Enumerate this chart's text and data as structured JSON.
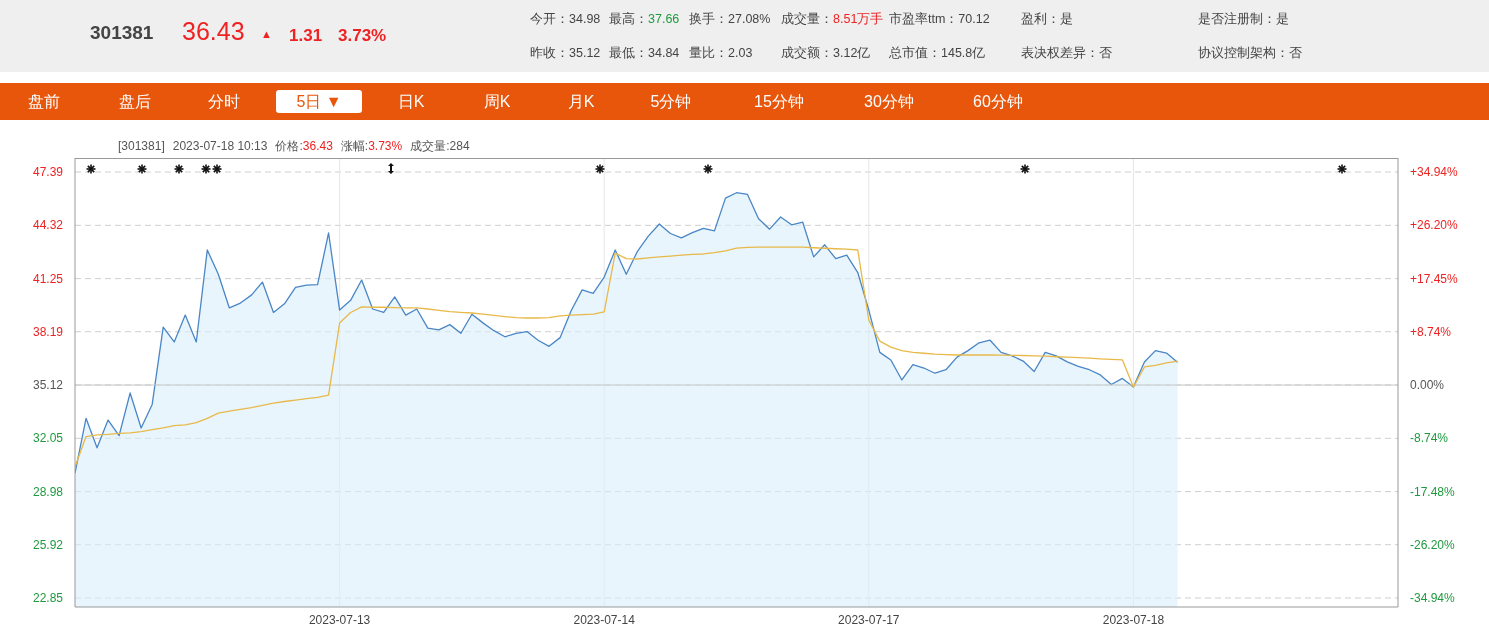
{
  "chart_data": {
    "type": "line",
    "annotations": [
      "301381",
      "36.43",
      "▲",
      "1.31",
      "3.73%",
      "今开：",
      "34.98",
      "最高：",
      "37.66",
      "换手：",
      "27.08%",
      "成交量：",
      "8.51万手",
      "市盈率ttm：",
      "70.12",
      "盈利：",
      "是",
      "是否注册制：",
      "是",
      "昨收：",
      "35.12",
      "最低：",
      "34.84",
      "量比：",
      "2.03",
      "成交额：",
      "3.12亿",
      "总市值：",
      "145.8亿",
      "表决权差异：",
      "否",
      "协议控制架构：",
      "否",
      "盘前",
      "盘后",
      "分时",
      "5日 ▼",
      "日K",
      "周K",
      "月K",
      "5分钟",
      "15分钟",
      "30分钟",
      "60分钟",
      "[301381]",
      "2023-07-18 10:13",
      "价格:",
      "36.43",
      "涨幅:",
      "3.73%",
      "成交量:284"
    ],
    "categories": [
      null,
      null,
      null,
      null,
      null,
      null,
      null,
      null,
      null,
      null,
      null,
      null,
      null,
      null,
      null,
      null,
      null,
      null,
      null,
      null,
      null,
      null,
      null,
      null,
      "2023-07-13",
      null,
      null,
      null,
      null,
      null,
      null,
      null,
      null,
      null,
      null,
      null,
      null,
      null,
      null,
      null,
      null,
      null,
      null,
      null,
      null,
      null,
      null,
      null,
      "2023-07-14",
      null,
      null,
      null,
      null,
      null,
      null,
      null,
      null,
      null,
      null,
      null,
      null,
      null,
      null,
      null,
      null,
      null,
      null,
      null,
      null,
      null,
      null,
      null,
      "2023-07-17",
      null,
      null,
      null,
      null,
      null,
      null,
      null,
      null,
      null,
      null,
      null,
      null,
      null,
      null,
      null,
      null,
      null,
      null,
      null,
      null,
      null,
      null,
      null,
      "2023-07-18",
      null,
      null,
      null,
      null,
      null,
      null,
      null,
      null,
      null,
      null,
      null,
      null,
      null,
      null,
      null,
      null,
      null,
      null,
      null,
      null,
      null,
      null,
      null,
      null
    ],
    "ylim": [
      22.33,
      48.2
    ],
    "yticks": [
      22.85,
      25.92,
      28.98,
      32.05,
      35.12,
      38.19,
      41.25,
      44.32,
      47.39
    ],
    "y2lim": [
      -36.42,
      37.24
    ],
    "y2ticks": [
      {
        "value": -34.94,
        "label": "-34.94%"
      },
      {
        "value": -26.2,
        "label": "-26.20%"
      },
      {
        "value": -17.48,
        "label": "-17.48%"
      },
      {
        "value": -8.74,
        "label": "-8.74%"
      },
      {
        "value": 0,
        "label": "0.00%"
      },
      {
        "value": 8.74,
        "label": "+8.74%"
      },
      {
        "value": 17.45,
        "label": "+17.45%"
      },
      {
        "value": 26.2,
        "label": "+26.20%"
      },
      {
        "value": 34.94,
        "label": "+34.94%"
      }
    ],
    "ref_lines": [
      {
        "axis": "y",
        "value": 35.12,
        "color": "#c8c8c8"
      }
    ],
    "grid": true,
    "marker": "none",
    "line_style": "solid",
    "series": [
      {
        "type": "area",
        "color": "#4a86c5",
        "values": [
          30.05,
          33.2,
          31.5,
          33.1,
          32.2,
          34.66,
          32.64,
          34.0,
          38.46,
          37.6,
          39.15,
          37.6,
          42.9,
          41.5,
          39.56,
          39.84,
          40.3,
          41.05,
          39.3,
          39.8,
          40.75,
          40.88,
          40.9,
          43.88,
          39.44,
          40.0,
          41.17,
          39.5,
          39.3,
          40.2,
          39.15,
          39.5,
          38.4,
          38.3,
          38.6,
          38.1,
          39.2,
          38.7,
          38.25,
          37.9,
          38.1,
          38.2,
          37.7,
          37.35,
          37.85,
          39.4,
          40.6,
          40.4,
          41.34,
          42.9,
          41.5,
          42.8,
          43.7,
          44.4,
          43.85,
          43.6,
          43.9,
          44.15,
          44.0,
          45.89,
          46.2,
          46.1,
          44.7,
          44.1,
          44.8,
          44.35,
          44.51,
          42.5,
          43.2,
          42.4,
          42.6,
          41.6,
          39.44,
          37.0,
          36.56,
          35.41,
          36.3,
          36.1,
          35.8,
          36.0,
          36.73,
          37.1,
          37.55,
          37.7,
          37.0,
          36.8,
          36.5,
          35.9,
          37.0,
          36.8,
          36.45,
          36.2,
          36.0,
          35.7,
          35.15,
          35.5,
          35.0,
          36.45,
          37.1,
          36.96,
          36.43,
          null,
          null,
          null,
          null,
          null,
          null,
          null,
          null,
          null,
          null,
          null,
          null,
          null,
          null,
          null,
          null,
          null,
          null,
          null,
          null
        ]
      },
      {
        "type": "line",
        "color": "#e8b949",
        "values": [
          30.4,
          32.15,
          32.25,
          32.28,
          32.33,
          32.36,
          32.44,
          32.55,
          32.65,
          32.78,
          32.82,
          32.95,
          33.2,
          33.5,
          33.62,
          33.72,
          33.82,
          33.95,
          34.08,
          34.17,
          34.25,
          34.33,
          34.41,
          34.54,
          38.69,
          39.3,
          39.62,
          39.6,
          39.6,
          39.58,
          39.57,
          39.56,
          39.5,
          39.42,
          39.35,
          39.3,
          39.27,
          39.2,
          39.13,
          39.06,
          39.0,
          38.98,
          38.98,
          39.0,
          39.1,
          39.15,
          39.18,
          39.21,
          39.33,
          42.72,
          42.4,
          42.38,
          42.45,
          42.5,
          42.55,
          42.6,
          42.65,
          42.67,
          42.75,
          42.85,
          43.01,
          43.05,
          43.07,
          43.07,
          43.07,
          43.07,
          43.06,
          43.03,
          43.0,
          42.97,
          42.95,
          42.9,
          38.86,
          37.65,
          37.3,
          37.1,
          37.0,
          36.95,
          36.9,
          36.87,
          36.85,
          36.85,
          36.85,
          36.85,
          36.84,
          36.83,
          36.82,
          36.8,
          36.78,
          36.75,
          36.73,
          36.7,
          36.67,
          36.63,
          36.6,
          36.57,
          35.0,
          36.16,
          36.25,
          36.4,
          36.5,
          null,
          null,
          null,
          null,
          null,
          null,
          null,
          null,
          null,
          null,
          null,
          null,
          null,
          null,
          null,
          null,
          null,
          null,
          null,
          null
        ]
      }
    ]
  }
}
